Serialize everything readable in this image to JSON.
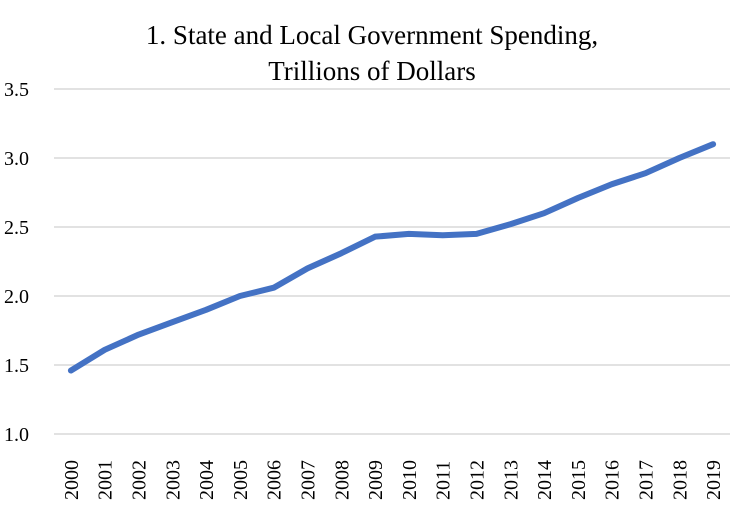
{
  "chart_data": {
    "type": "line",
    "title": [
      "1. State and Local Government Spending,",
      "Trillions of Dollars"
    ],
    "xlabel": "",
    "ylabel": "",
    "ylim": [
      1.0,
      3.5
    ],
    "yticks": [
      "1.0",
      "1.5",
      "2.0",
      "2.5",
      "3.0",
      "3.5"
    ],
    "ytick_values": [
      1.0,
      1.5,
      2.0,
      2.5,
      3.0,
      3.5
    ],
    "grid": true,
    "legend": "none",
    "categories": [
      "2000",
      "2001",
      "2002",
      "2003",
      "2004",
      "2005",
      "2006",
      "2007",
      "2008",
      "2009",
      "2010",
      "2011",
      "2012",
      "2013",
      "2014",
      "2015",
      "2016",
      "2017",
      "2018",
      "2019"
    ],
    "series": [
      {
        "name": "State and Local Government Spending",
        "color": "#4472C4",
        "values": [
          1.46,
          1.61,
          1.72,
          1.81,
          1.9,
          2.0,
          2.06,
          2.2,
          2.31,
          2.43,
          2.45,
          2.44,
          2.45,
          2.52,
          2.6,
          2.71,
          2.81,
          2.89,
          3.0,
          3.1
        ]
      }
    ],
    "gridline_color": "#D9D9D9"
  }
}
